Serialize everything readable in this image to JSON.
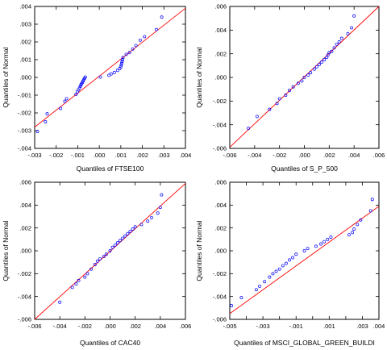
{
  "colors": {
    "reference_line": "#ff0000",
    "points": "#0000ff",
    "axes": "#000000",
    "background": "#ffffff"
  },
  "chart_data": [
    {
      "type": "scatter",
      "title": "",
      "xlabel": "Quantiles of FTSE100",
      "ylabel": "Quantiles of Normal",
      "xlim": [
        -0.003,
        0.004
      ],
      "ylim": [
        -0.004,
        0.004
      ],
      "xticks": [
        -0.003,
        -0.002,
        -0.001,
        0.0,
        0.001,
        0.002,
        0.003,
        0.004
      ],
      "xtick_labels": [
        "-.003",
        "-.002",
        "-.001",
        ".000",
        ".001",
        ".002",
        ".003",
        ".004"
      ],
      "yticks": [
        -0.004,
        -0.003,
        -0.002,
        -0.001,
        0.0,
        0.001,
        0.002,
        0.003,
        0.004
      ],
      "ytick_labels": [
        "-.004",
        "-.003",
        "-.002",
        "-.001",
        ".000",
        ".001",
        ".002",
        ".003",
        ".004"
      ],
      "reference_line": {
        "x": [
          -0.003,
          0.004
        ],
        "y": [
          -0.0028,
          0.0039
        ]
      },
      "points": {
        "x": [
          -0.00287,
          -0.0025,
          -0.00242,
          -0.0018,
          -0.0016,
          -0.00152,
          -0.00108,
          -0.00102,
          -0.00098,
          -0.00092,
          -0.00088,
          -0.00085,
          -0.00082,
          -0.00078,
          -0.00075,
          -0.00072,
          -0.00068,
          -0.00065,
          5e-05,
          0.00045,
          0.00055,
          0.0007,
          0.00085,
          0.00095,
          0.001,
          0.00102,
          0.00104,
          0.00106,
          0.00108,
          0.0011,
          0.00125,
          0.0014,
          0.00155,
          0.0017,
          0.0019,
          0.0021,
          0.00265,
          0.0029
        ],
        "y": [
          -0.00305,
          -0.0025,
          -0.00205,
          -0.00175,
          -0.00135,
          -0.0012,
          -0.00095,
          -0.00082,
          -0.0007,
          -0.0006,
          -0.0005,
          -0.00042,
          -0.00035,
          -0.00028,
          -0.0002,
          -0.00012,
          -5e-05,
          2e-05,
          2e-05,
          0.00012,
          0.0002,
          0.00028,
          0.0004,
          0.0005,
          0.0006,
          0.0007,
          0.0008,
          0.0009,
          0.001,
          0.00112,
          0.0013,
          0.0014,
          0.0016,
          0.0018,
          0.0021,
          0.0023,
          0.0027,
          0.0034
        ]
      }
    },
    {
      "type": "scatter",
      "title": "",
      "xlabel": "Quantiles of S_P_500",
      "ylabel": "Quantiles of Normal",
      "xlim": [
        -0.006,
        0.006
      ],
      "ylim": [
        -0.006,
        0.006
      ],
      "xticks": [
        -0.006,
        -0.004,
        -0.002,
        0.0,
        0.002,
        0.004,
        0.006
      ],
      "xtick_labels": [
        "-.006",
        "-.004",
        "-.002",
        ".000",
        ".002",
        ".004",
        ".006"
      ],
      "yticks": [
        -0.006,
        -0.004,
        -0.002,
        0.0,
        0.002,
        0.004,
        0.006
      ],
      "ytick_labels": [
        "-.006",
        "-.004",
        "-.002",
        ".000",
        ".002",
        ".004",
        ".006"
      ],
      "reference_line": {
        "x": [
          -0.006,
          0.006
        ],
        "y": [
          -0.0059,
          0.006
        ]
      },
      "points": {
        "x": [
          -0.0045,
          -0.0038,
          -0.0028,
          -0.0022,
          -0.002,
          -0.0015,
          -0.0012,
          -0.0009,
          -0.0005,
          -0.0002,
          0.0,
          0.0003,
          0.0005,
          0.0008,
          0.001,
          0.0012,
          0.0014,
          0.0016,
          0.0018,
          0.0019,
          0.002,
          0.0022,
          0.0024,
          0.0026,
          0.0028,
          0.003,
          0.0035,
          0.0038,
          0.004
        ],
        "y": [
          -0.0043,
          -0.0033,
          -0.0027,
          -0.0022,
          -0.0018,
          -0.0015,
          -0.0011,
          -0.0008,
          -0.0005,
          -0.0003,
          0.0,
          0.0002,
          0.0004,
          0.0007,
          0.0009,
          0.0011,
          0.0013,
          0.0015,
          0.0017,
          0.0019,
          0.0021,
          0.0022,
          0.0025,
          0.0028,
          0.003,
          0.0033,
          0.0037,
          0.0042,
          0.0052
        ]
      }
    },
    {
      "type": "scatter",
      "title": "",
      "xlabel": "Quantiles of CAC40",
      "ylabel": "Quantiles of Normal",
      "xlim": [
        -0.006,
        0.006
      ],
      "ylim": [
        -0.006,
        0.006
      ],
      "xticks": [
        -0.006,
        -0.004,
        -0.002,
        0.0,
        0.002,
        0.004,
        0.006
      ],
      "xtick_labels": [
        "-.006",
        "-.004",
        "-.002",
        ".000",
        ".002",
        ".004",
        ".006"
      ],
      "yticks": [
        -0.006,
        -0.004,
        -0.002,
        0.0,
        0.002,
        0.004,
        0.006
      ],
      "ytick_labels": [
        "-.006",
        "-.004",
        "-.002",
        ".000",
        ".002",
        ".004",
        ".006"
      ],
      "reference_line": {
        "x": [
          -0.006,
          0.006
        ],
        "y": [
          -0.006,
          0.0059
        ]
      },
      "points": {
        "x": [
          -0.004,
          -0.003,
          -0.0027,
          -0.0025,
          -0.002,
          -0.0018,
          -0.0015,
          -0.0012,
          -0.001,
          -0.0008,
          -0.0005,
          -0.0003,
          0.0,
          0.0002,
          0.0004,
          0.0006,
          0.0008,
          0.001,
          0.0012,
          0.0014,
          0.0016,
          0.0018,
          0.002,
          0.0025,
          0.003,
          0.0033,
          0.0038,
          0.004,
          0.0041
        ],
        "y": [
          -0.0045,
          -0.0032,
          -0.0029,
          -0.0026,
          -0.0023,
          -0.002,
          -0.0016,
          -0.0012,
          -0.0009,
          -0.0007,
          -0.0005,
          -0.0003,
          0.0,
          0.0003,
          0.0005,
          0.0007,
          0.0009,
          0.0011,
          0.0013,
          0.0015,
          0.0017,
          0.0019,
          0.0021,
          0.0023,
          0.0026,
          0.0029,
          0.0033,
          0.0038,
          0.0049
        ]
      }
    },
    {
      "type": "scatter",
      "title": "",
      "xlabel": "Quantiles of MSCI_GLOBAL_GREEN_BUILDI",
      "ylabel": "Quantiles of Normal",
      "xlim": [
        -0.005,
        0.004
      ],
      "ylim": [
        -0.006,
        0.006
      ],
      "xticks": [
        -0.005,
        -0.004,
        -0.003,
        -0.002,
        -0.001,
        0.0,
        0.001,
        0.002,
        0.003,
        0.004
      ],
      "xtick_labels": [
        "-.005",
        "",
        "-.003",
        "",
        "-.001",
        "",
        ".001",
        "",
        ".003",
        ".004"
      ],
      "yticks": [
        -0.006,
        -0.004,
        -0.002,
        0.0,
        0.002,
        0.004,
        0.006
      ],
      "ytick_labels": [
        "-.006",
        "-.004",
        "-.002",
        ".000",
        ".002",
        ".004",
        ".006"
      ],
      "reference_line": {
        "x": [
          -0.005,
          0.004
        ],
        "y": [
          -0.0055,
          0.0039
        ]
      },
      "points": {
        "x": [
          -0.0049,
          -0.0043,
          -0.0034,
          -0.0032,
          -0.0029,
          -0.0026,
          -0.0024,
          -0.0022,
          -0.002,
          -0.0018,
          -0.0016,
          -0.0014,
          -0.0012,
          -0.001,
          -0.0005,
          -0.0003,
          0.0002,
          0.0005,
          0.0007,
          0.0009,
          0.0011,
          0.0022,
          0.0024,
          0.0025,
          0.0027,
          0.0029,
          0.0035,
          0.0036
        ],
        "y": [
          -0.0048,
          -0.0041,
          -0.0034,
          -0.0031,
          -0.0027,
          -0.0023,
          -0.002,
          -0.0018,
          -0.0016,
          -0.0013,
          -0.0011,
          -0.0008,
          -0.0006,
          -0.0003,
          0.0,
          0.0002,
          0.0004,
          0.0006,
          0.0008,
          0.001,
          0.0012,
          0.0014,
          0.0016,
          0.0019,
          0.0023,
          0.0027,
          0.0035,
          0.0045
        ]
      }
    }
  ]
}
